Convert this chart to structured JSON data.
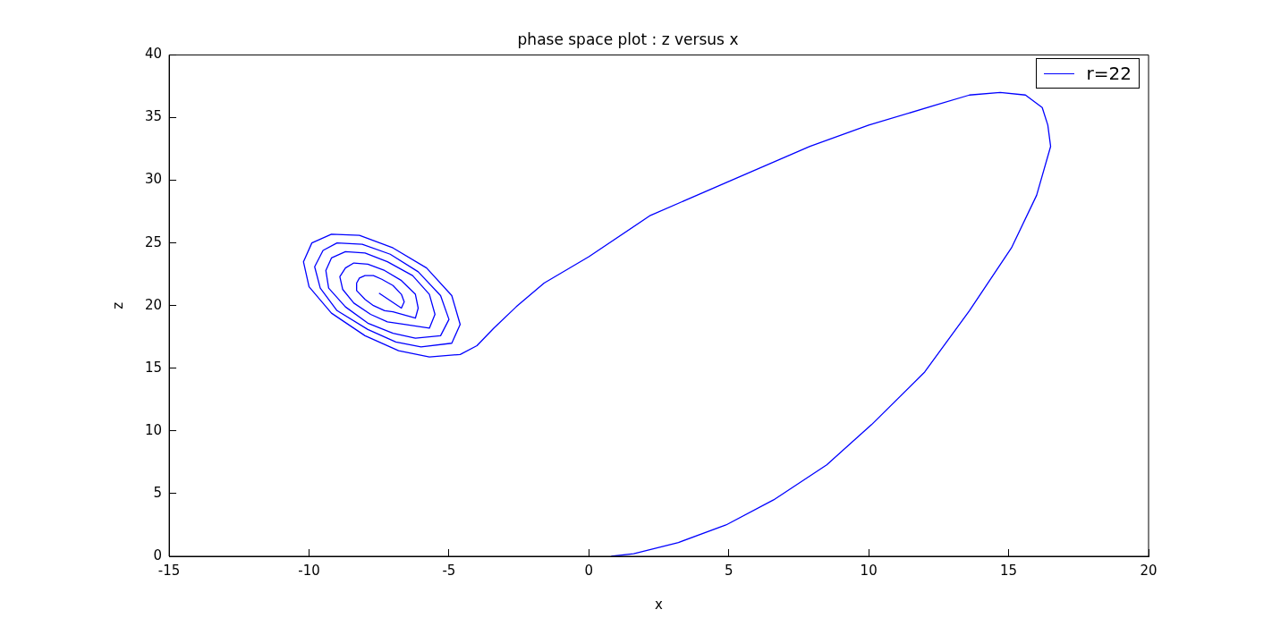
{
  "chart_data": {
    "type": "line",
    "title": "phase space plot : z versus x",
    "xlabel": "x",
    "ylabel": "z",
    "xlim": [
      -15,
      20
    ],
    "xticks": [
      -15,
      -10,
      -5,
      0,
      5,
      10,
      15,
      20
    ],
    "ylim": [
      0,
      40
    ],
    "yticks": [
      0,
      5,
      10,
      15,
      20,
      25,
      30,
      35,
      40
    ],
    "grid": false,
    "legend": "top right",
    "marker": "none",
    "line_style": "solid",
    "series": [
      {
        "name": "r=22",
        "color": "#0000ff",
        "x": [
          0.8,
          1.6,
          3.2,
          4.9,
          6.6,
          8.5,
          10.1,
          12.0,
          13.6,
          15.1,
          16.0,
          16.5,
          16.4,
          16.2,
          15.6,
          14.7,
          13.6,
          12.4,
          10.0,
          7.9,
          5.0,
          2.2,
          0.0,
          -1.6,
          -2.6,
          -3.4,
          -4.0,
          -4.6,
          -5.7,
          -6.8,
          -8.0,
          -9.2,
          -10.0,
          -10.2,
          -9.9,
          -9.2,
          -8.2,
          -7.0,
          -5.8,
          -4.9,
          -4.6,
          -4.9,
          -6.0,
          -6.9,
          -7.9,
          -9.0,
          -9.6,
          -9.8,
          -9.5,
          -9.0,
          -8.1,
          -7.1,
          -6.1,
          -5.3,
          -5.0,
          -5.3,
          -6.2,
          -7.0,
          -7.9,
          -8.7,
          -9.3,
          -9.4,
          -9.2,
          -8.7,
          -8.0,
          -7.2,
          -6.3,
          -5.7,
          -5.5,
          -5.7,
          -6.6,
          -7.2,
          -7.8,
          -8.4,
          -8.8,
          -8.9,
          -8.7,
          -8.4,
          -7.9,
          -7.3,
          -6.7,
          -6.2,
          -6.1,
          -6.2,
          -7.0,
          -7.3,
          -7.7,
          -8.0,
          -8.3,
          -8.3,
          -8.2,
          -8.0,
          -7.7,
          -7.4,
          -7.0,
          -6.7,
          -6.6,
          -6.7,
          -7.5
        ],
        "values": [
          0.0,
          0.2,
          1.1,
          2.5,
          4.5,
          7.3,
          10.5,
          14.7,
          19.6,
          24.6,
          28.8,
          32.7,
          34.4,
          35.8,
          36.8,
          37.0,
          36.8,
          36.0,
          34.4,
          32.7,
          29.9,
          27.2,
          23.9,
          21.8,
          19.9,
          18.2,
          16.8,
          16.1,
          15.9,
          16.4,
          17.6,
          19.4,
          21.5,
          23.5,
          25.0,
          25.7,
          25.6,
          24.6,
          23.0,
          20.8,
          18.5,
          17.0,
          16.7,
          17.1,
          18.1,
          19.6,
          21.4,
          23.1,
          24.4,
          25.0,
          24.9,
          24.1,
          22.7,
          20.8,
          18.9,
          17.6,
          17.4,
          17.8,
          18.6,
          19.9,
          21.4,
          22.8,
          23.8,
          24.3,
          24.2,
          23.5,
          22.4,
          20.9,
          19.3,
          18.2,
          18.5,
          18.7,
          19.3,
          20.2,
          21.3,
          22.3,
          23.0,
          23.4,
          23.3,
          22.8,
          22.0,
          20.9,
          19.8,
          19.0,
          19.5,
          19.6,
          20.0,
          20.5,
          21.2,
          21.8,
          22.2,
          22.4,
          22.4,
          22.1,
          21.6,
          20.9,
          20.3,
          19.8,
          21.0
        ]
      }
    ]
  }
}
